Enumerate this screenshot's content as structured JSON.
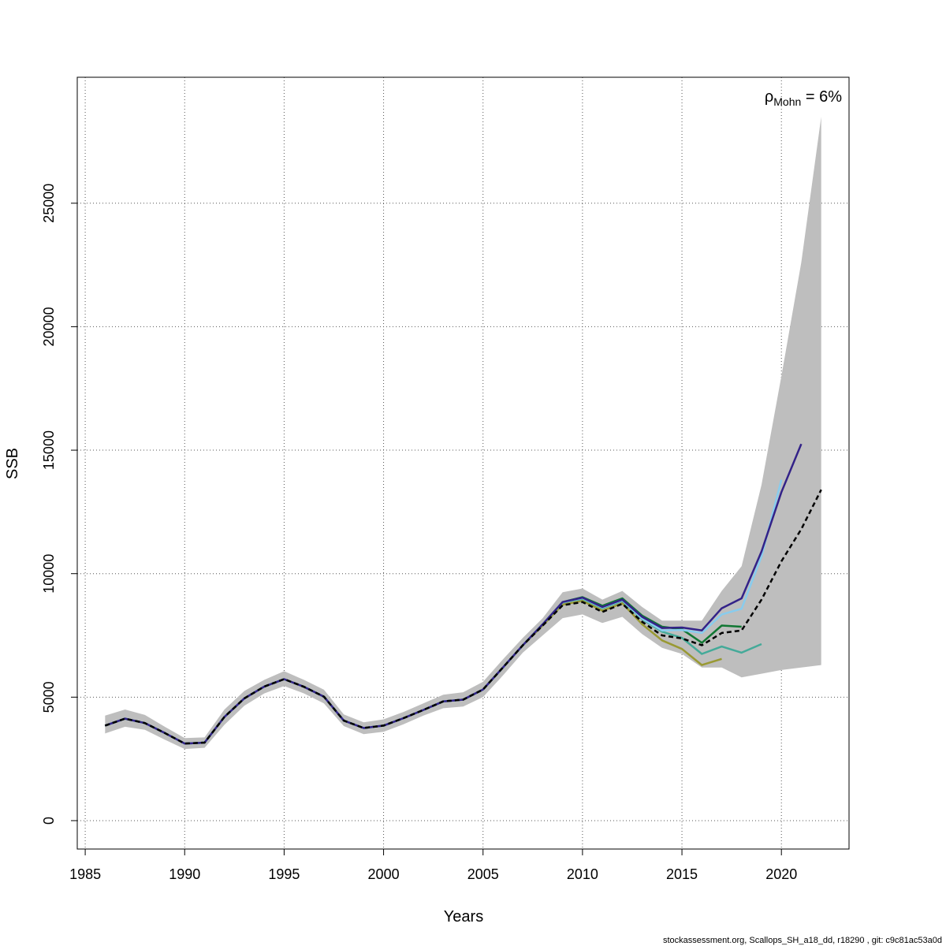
{
  "chart_data": {
    "type": "line",
    "title": "",
    "xlabel": "Years",
    "ylabel": "SSB",
    "xlim": [
      1984.6,
      2023.4
    ],
    "ylim": [
      -1150,
      30100
    ],
    "x_ticks": [
      1985,
      1990,
      1995,
      2000,
      2005,
      2010,
      2015,
      2020
    ],
    "y_ticks": [
      0,
      5000,
      10000,
      15000,
      20000,
      25000
    ],
    "grid": true,
    "annotation": {
      "rho_symbol": "ρ",
      "rho_subscript": "Mohn",
      "rho_value": " = 6%"
    },
    "confidence_band": {
      "x": [
        1986,
        1987,
        1988,
        1989,
        1990,
        1991,
        1992,
        1993,
        1994,
        1995,
        1996,
        1997,
        1998,
        1999,
        2000,
        2001,
        2002,
        2003,
        2004,
        2005,
        2006,
        2007,
        2008,
        2009,
        2010,
        2011,
        2012,
        2013,
        2014,
        2015,
        2016,
        2017,
        2018,
        2019,
        2020,
        2021,
        2022
      ],
      "lower": [
        3530,
        3800,
        3680,
        3280,
        2900,
        2950,
        3880,
        4650,
        5150,
        5450,
        5150,
        4750,
        3830,
        3500,
        3600,
        3900,
        4250,
        4550,
        4620,
        5000,
        5880,
        6800,
        7500,
        8200,
        8350,
        8000,
        8250,
        7550,
        7000,
        6750,
        6200,
        6200,
        5800,
        5950,
        6100,
        6200,
        6300
      ],
      "upper": [
        4250,
        4500,
        4280,
        3800,
        3340,
        3370,
        4500,
        5250,
        5700,
        6050,
        5700,
        5300,
        4300,
        3980,
        4100,
        4400,
        4750,
        5100,
        5200,
        5620,
        6530,
        7400,
        8200,
        9250,
        9400,
        8950,
        9300,
        8650,
        8100,
        8100,
        8100,
        9300,
        10300,
        13600,
        18000,
        22600,
        28500
      ]
    },
    "series": [
      {
        "color": "#000000",
        "dashed": true,
        "x": [
          1986,
          1987,
          1988,
          1989,
          1990,
          1991,
          1992,
          1993,
          1994,
          1995,
          1996,
          1997,
          1998,
          1999,
          2000,
          2001,
          2002,
          2003,
          2004,
          2005,
          2006,
          2007,
          2008,
          2009,
          2010,
          2011,
          2012,
          2013,
          2014,
          2015,
          2016,
          2017,
          2018,
          2019,
          2020,
          2021,
          2022
        ],
        "values": [
          3850,
          4130,
          3950,
          3550,
          3120,
          3160,
          4200,
          4950,
          5430,
          5730,
          5420,
          5020,
          4050,
          3750,
          3850,
          4150,
          4480,
          4830,
          4900,
          5310,
          6200,
          7100,
          7900,
          8720,
          8850,
          8450,
          8780,
          8050,
          7500,
          7380,
          7100,
          7600,
          7700,
          8950,
          10500,
          11800,
          13400
        ]
      },
      {
        "color": "#332288",
        "dashed": false,
        "x": [
          1986,
          1987,
          1988,
          1989,
          1990,
          1991,
          1992,
          1993,
          1994,
          1995,
          1996,
          1997,
          1998,
          1999,
          2000,
          2001,
          2002,
          2003,
          2004,
          2005,
          2006,
          2007,
          2008,
          2009,
          2010,
          2011,
          2012,
          2013,
          2014,
          2015,
          2016,
          2017,
          2018,
          2019,
          2020,
          2021
        ],
        "values": [
          3850,
          4130,
          3950,
          3550,
          3120,
          3160,
          4200,
          4950,
          5430,
          5730,
          5420,
          5020,
          4050,
          3750,
          3850,
          4150,
          4480,
          4830,
          4900,
          5310,
          6200,
          7100,
          7950,
          8850,
          9030,
          8650,
          8950,
          8250,
          7800,
          7820,
          7700,
          8600,
          9000,
          10900,
          13300,
          15250
        ]
      },
      {
        "color": "#88CCEE",
        "dashed": false,
        "x": [
          1986,
          1987,
          1988,
          1989,
          1990,
          1991,
          1992,
          1993,
          1994,
          1995,
          1996,
          1997,
          1998,
          1999,
          2000,
          2001,
          2002,
          2003,
          2004,
          2005,
          2006,
          2007,
          2008,
          2009,
          2010,
          2011,
          2012,
          2013,
          2014,
          2015,
          2016,
          2017,
          2018,
          2019,
          2020
        ],
        "values": [
          3850,
          4130,
          3950,
          3550,
          3120,
          3160,
          4200,
          4950,
          5430,
          5730,
          5420,
          5020,
          4050,
          3750,
          3850,
          4150,
          4480,
          4830,
          4900,
          5310,
          6200,
          7100,
          7950,
          8840,
          9010,
          8630,
          8930,
          8180,
          7700,
          7720,
          7600,
          8350,
          8580,
          10700,
          13800
        ]
      },
      {
        "color": "#44AA99",
        "dashed": false,
        "x": [
          1986,
          1987,
          1988,
          1989,
          1990,
          1991,
          1992,
          1993,
          1994,
          1995,
          1996,
          1997,
          1998,
          1999,
          2000,
          2001,
          2002,
          2003,
          2004,
          2005,
          2006,
          2007,
          2008,
          2009,
          2010,
          2011,
          2012,
          2013,
          2014,
          2015,
          2016,
          2017,
          2018,
          2019
        ],
        "values": [
          3850,
          4130,
          3950,
          3550,
          3120,
          3160,
          4200,
          4950,
          5430,
          5730,
          5420,
          5020,
          4050,
          3750,
          3850,
          4150,
          4480,
          4830,
          4900,
          5310,
          6200,
          7100,
          7950,
          8830,
          8980,
          8600,
          8900,
          8150,
          7650,
          7400,
          6750,
          7050,
          6800,
          7150
        ]
      },
      {
        "color": "#117733",
        "dashed": false,
        "x": [
          1986,
          1987,
          1988,
          1989,
          1990,
          1991,
          1992,
          1993,
          1994,
          1995,
          1996,
          1997,
          1998,
          1999,
          2000,
          2001,
          2002,
          2003,
          2004,
          2005,
          2006,
          2007,
          2008,
          2009,
          2010,
          2011,
          2012,
          2013,
          2014,
          2015,
          2016,
          2017,
          2018
        ],
        "values": [
          3850,
          4130,
          3950,
          3550,
          3120,
          3160,
          4200,
          4950,
          5430,
          5730,
          5420,
          5020,
          4050,
          3750,
          3850,
          4150,
          4480,
          4830,
          4900,
          5310,
          6200,
          7100,
          7950,
          8850,
          9050,
          8700,
          9000,
          8300,
          7850,
          7750,
          7200,
          7900,
          7850
        ]
      },
      {
        "color": "#999933",
        "dashed": false,
        "x": [
          1986,
          1987,
          1988,
          1989,
          1990,
          1991,
          1992,
          1993,
          1994,
          1995,
          1996,
          1997,
          1998,
          1999,
          2000,
          2001,
          2002,
          2003,
          2004,
          2005,
          2006,
          2007,
          2008,
          2009,
          2010,
          2011,
          2012,
          2013,
          2014,
          2015,
          2016,
          2017
        ],
        "values": [
          3850,
          4130,
          3950,
          3550,
          3120,
          3160,
          4200,
          4950,
          5430,
          5730,
          5420,
          5020,
          4050,
          3750,
          3850,
          4150,
          4480,
          4830,
          4900,
          5310,
          6200,
          7100,
          7900,
          8750,
          8900,
          8500,
          8800,
          7950,
          7300,
          6950,
          6300,
          6550
        ]
      }
    ],
    "band_color": "#bebebe"
  },
  "footer": "stockassessment.org, Scallops_SH_a18_dd, r18290 , git: c9c81ac53a0d"
}
